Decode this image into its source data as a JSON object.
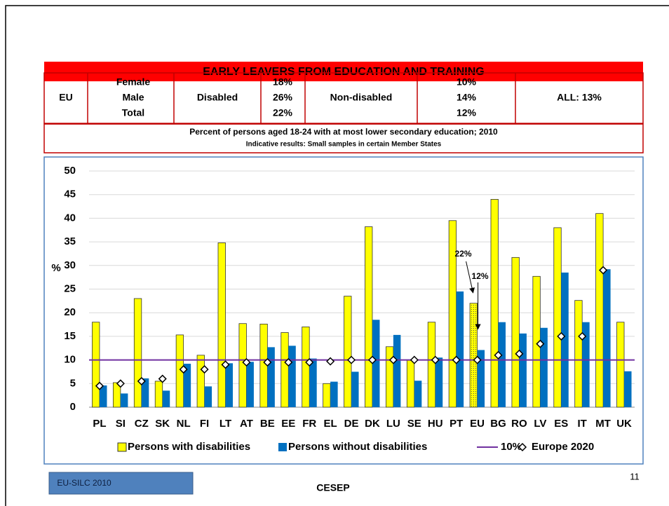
{
  "banner": "EARLY LEAVERS FROM EDUCATION AND TRAINING",
  "table": {
    "row_label": "EU",
    "groups": [
      "Female",
      "Male",
      "Total"
    ],
    "disabled_label": "Disabled",
    "disabled": [
      "18%",
      "26%",
      "22%"
    ],
    "nondisabled_label": "Non-disabled",
    "nondisabled": [
      "10%",
      "14%",
      "12%"
    ],
    "all": "ALL: 13%"
  },
  "subtitle": "Percent of persons aged 18-24 with at most lower secondary education; 2010",
  "note": "Indicative results: Small samples in certain Member States",
  "chart_data": {
    "type": "bar",
    "categories": [
      "PL",
      "SI",
      "CZ",
      "SK",
      "NL",
      "FI",
      "LT",
      "AT",
      "BE",
      "EE",
      "FR",
      "EL",
      "DE",
      "DK",
      "LU",
      "SE",
      "HU",
      "PT",
      "EU",
      "BG",
      "RO",
      "LV",
      "ES",
      "IT",
      "MT",
      "UK"
    ],
    "series": [
      {
        "name": "Persons with disabilities",
        "color": "#ffff00",
        "values": [
          18,
          5.2,
          23,
          5.5,
          15.3,
          11,
          34.8,
          17.7,
          17.6,
          15.8,
          17,
          5,
          23.5,
          38.2,
          12.8,
          10,
          18,
          39.5,
          22,
          44,
          31.7,
          27.7,
          38,
          22.6,
          41,
          18
        ]
      },
      {
        "name": "Persons without disabilities",
        "color": "#0070c0",
        "values": [
          4.6,
          2.9,
          6.1,
          3.5,
          9.2,
          4.4,
          9.3,
          9.6,
          12.7,
          13,
          10.3,
          5.4,
          7.5,
          18.5,
          15.3,
          5.6,
          10.5,
          24.5,
          12.1,
          18,
          15.6,
          16.8,
          28.5,
          18,
          29.2,
          7.6
        ]
      },
      {
        "name": "Europe 2020",
        "type": "scatter",
        "color": "#ffffff",
        "values": [
          4.5,
          5,
          5.5,
          6,
          8,
          8,
          9,
          9.5,
          9.5,
          9.5,
          9.5,
          9.7,
          10,
          10,
          10,
          10,
          10,
          10,
          10,
          11,
          11.3,
          13.4,
          15,
          15,
          29,
          null
        ]
      }
    ],
    "reference_line": {
      "name": "10%",
      "value": 10,
      "color": "#7030a0"
    },
    "highlight_category": "EU",
    "annotations": [
      "22%",
      "12%"
    ],
    "y_label": "%",
    "ylim": [
      0,
      50
    ],
    "yticks": [
      0,
      5,
      10,
      15,
      20,
      25,
      30,
      35,
      40,
      45,
      50
    ],
    "grid": true,
    "legend": "bottom"
  },
  "footer": {
    "source": "EU-SILC 2010",
    "org": "CESEP",
    "page": "11"
  }
}
